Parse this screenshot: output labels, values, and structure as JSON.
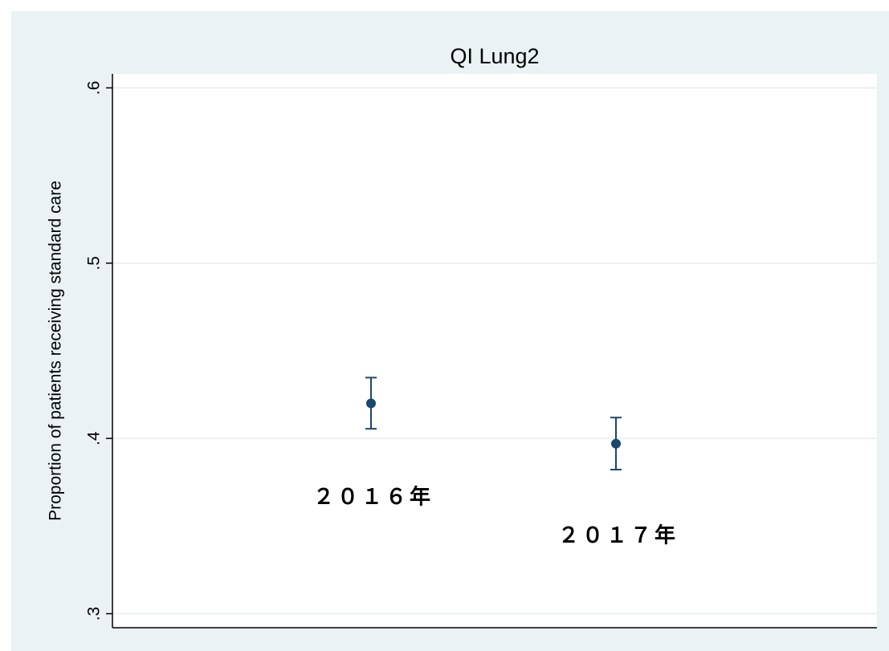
{
  "chart_data": {
    "type": "errorbar_scatter",
    "title": "QI Lung2",
    "y_label": "Proportion of patients receiving standard care",
    "categories": [
      "２０１６年",
      "２０１７年"
    ],
    "values": [
      0.42,
      0.397
    ],
    "lower": [
      0.4055,
      0.3822
    ],
    "upper": [
      0.4347,
      0.4119
    ],
    "color": "#1a476f",
    "ylim": [
      0.292,
      0.608
    ],
    "yticks": [
      {
        "value": 0.3,
        "label": ".3"
      },
      {
        "value": 0.4,
        "label": ".4"
      },
      {
        "value": 0.5,
        "label": ".5"
      },
      {
        "value": 0.6,
        "label": ".6"
      }
    ],
    "grid": true
  }
}
